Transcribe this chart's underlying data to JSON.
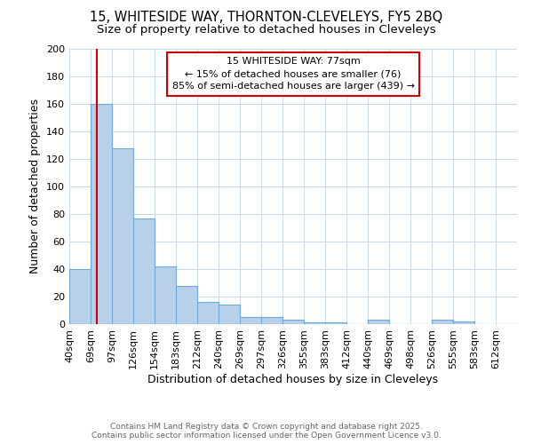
{
  "title1": "15, WHITESIDE WAY, THORNTON-CLEVELEYS, FY5 2BQ",
  "title2": "Size of property relative to detached houses in Cleveleys",
  "xlabel": "Distribution of detached houses by size in Cleveleys",
  "ylabel": "Number of detached properties",
  "bin_labels": [
    "40sqm",
    "69sqm",
    "97sqm",
    "126sqm",
    "154sqm",
    "183sqm",
    "212sqm",
    "240sqm",
    "269sqm",
    "297sqm",
    "326sqm",
    "355sqm",
    "383sqm",
    "412sqm",
    "440sqm",
    "469sqm",
    "498sqm",
    "526sqm",
    "555sqm",
    "583sqm",
    "612sqm"
  ],
  "bar_heights": [
    40,
    160,
    128,
    77,
    42,
    28,
    16,
    14,
    5,
    5,
    3,
    1,
    1,
    0,
    3,
    0,
    0,
    3,
    2,
    0,
    0
  ],
  "bar_color": "#b8d0ea",
  "bar_edge_color": "#6aaad4",
  "red_line_x": 77,
  "annotation_title": "15 WHITESIDE WAY: 77sqm",
  "annotation_line1": "← 15% of detached houses are smaller (76)",
  "annotation_line2": "85% of semi-detached houses are larger (439) →",
  "annotation_box_color": "#cc0000",
  "ylim": [
    0,
    200
  ],
  "yticks": [
    0,
    20,
    40,
    60,
    80,
    100,
    120,
    140,
    160,
    180,
    200
  ],
  "footer1": "Contains HM Land Registry data © Crown copyright and database right 2025.",
  "footer2": "Contains public sector information licensed under the Open Government Licence v3.0.",
  "background_color": "#ffffff",
  "grid_color": "#c8d8e8",
  "title_fontsize": 10.5,
  "subtitle_fontsize": 9.5,
  "axis_fontsize": 9,
  "tick_fontsize": 8,
  "annotation_fontsize": 8,
  "footer_fontsize": 6.5
}
